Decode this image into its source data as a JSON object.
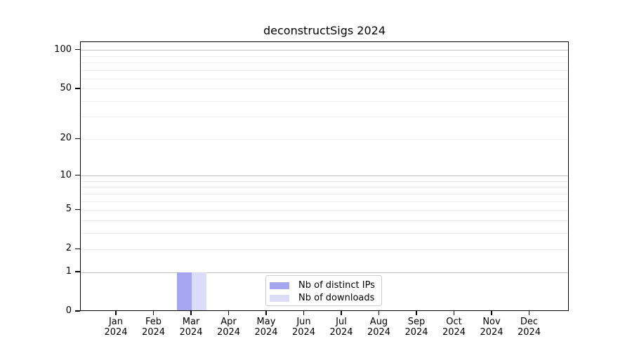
{
  "figure": {
    "title": "deconstructSigs 2024",
    "background": "#ffffff"
  },
  "chart_data": {
    "type": "bar",
    "title": "deconstructSigs 2024",
    "x": [
      "Jan 2024",
      "Feb 2024",
      "Mar 2024",
      "Apr 2024",
      "May 2024",
      "Jun 2024",
      "Jul 2024",
      "Aug 2024",
      "Sep 2024",
      "Oct 2024",
      "Nov 2024",
      "Dec 2024"
    ],
    "month_labels": [
      "Jan",
      "Feb",
      "Mar",
      "Apr",
      "May",
      "Jun",
      "Jul",
      "Aug",
      "Sep",
      "Oct",
      "Nov",
      "Dec"
    ],
    "year_label": "2024",
    "series": [
      {
        "name": "Nb of distinct IPs",
        "color": "#a5a5f0",
        "values": [
          0,
          0,
          1,
          0,
          0,
          0,
          0,
          0,
          0,
          0,
          0,
          0
        ]
      },
      {
        "name": "Nb of downloads",
        "color": "#dcdcf8",
        "values": [
          0,
          0,
          1,
          0,
          0,
          0,
          0,
          0,
          0,
          0,
          0,
          0
        ]
      }
    ],
    "xlabel": "",
    "ylabel": "",
    "yscale": "log1p",
    "ylim": [
      0,
      115
    ],
    "ytick_values": [
      0,
      1,
      2,
      5,
      10,
      20,
      50,
      100
    ],
    "ytick_labels": [
      "0",
      "1",
      "2",
      "5",
      "10",
      "20",
      "50",
      "100"
    ],
    "major_grid_values": [
      1,
      10,
      100
    ],
    "minor_grid_values": [
      2,
      3,
      4,
      5,
      6,
      7,
      8,
      9,
      20,
      30,
      40,
      50,
      60,
      70,
      80,
      90
    ],
    "grid": true,
    "legend_position": "lower center inside plot"
  },
  "legend": {
    "items": [
      {
        "label": "Nb of distinct IPs",
        "color": "#a5a5f0"
      },
      {
        "label": "Nb of downloads",
        "color": "#dcdcf8"
      }
    ]
  },
  "colors": {
    "bar_distinct_ips": "#a5a5f0",
    "bar_downloads": "#dcdcf8",
    "major_grid": "#c2c2c2",
    "minor_grid": "#ececec",
    "axis": "#000000",
    "legend_border": "#cccccc",
    "background": "#ffffff"
  }
}
